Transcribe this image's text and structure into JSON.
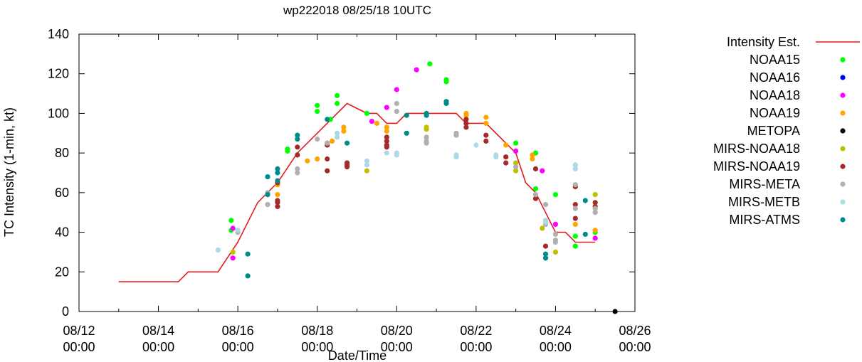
{
  "chart_data": {
    "type": "scatter",
    "title": "wp222018 08/25/18 10UTC",
    "xlabel": "Date/Time",
    "ylabel": "TC Intensity (1-min, kt)",
    "xlim": [
      "08/12 00:00",
      "08/26 00:00"
    ],
    "ylim": [
      0,
      140
    ],
    "x_tick_labels": [
      {
        "date": "08/12",
        "time": "00:00"
      },
      {
        "date": "08/14",
        "time": "00:00"
      },
      {
        "date": "08/16",
        "time": "00:00"
      },
      {
        "date": "08/18",
        "time": "00:00"
      },
      {
        "date": "08/20",
        "time": "00:00"
      },
      {
        "date": "08/22",
        "time": "00:00"
      },
      {
        "date": "08/24",
        "time": "00:00"
      },
      {
        "date": "08/26",
        "time": "00:00"
      }
    ],
    "y_ticks": [
      0,
      20,
      40,
      60,
      80,
      100,
      120,
      140
    ],
    "grid": false,
    "legend_position": "right",
    "line_series": {
      "name": "Intensity Est.",
      "color": "#e41a1c",
      "points": [
        [
          "08/13 00:00",
          15
        ],
        [
          "08/14 12:00",
          15
        ],
        [
          "08/14 18:00",
          20
        ],
        [
          "08/15 12:00",
          20
        ],
        [
          "08/16 00:00",
          35
        ],
        [
          "08/16 12:00",
          55
        ],
        [
          "08/17 00:00",
          65
        ],
        [
          "08/17 12:00",
          80
        ],
        [
          "08/18 00:00",
          90
        ],
        [
          "08/18 12:00",
          100
        ],
        [
          "08/18 18:00",
          105
        ],
        [
          "08/19 06:00",
          100
        ],
        [
          "08/19 12:00",
          100
        ],
        [
          "08/19 18:00",
          95
        ],
        [
          "08/20 00:00",
          95
        ],
        [
          "08/20 06:00",
          100
        ],
        [
          "08/21 12:00",
          100
        ],
        [
          "08/21 18:00",
          95
        ],
        [
          "08/22 06:00",
          95
        ],
        [
          "08/22 12:00",
          90
        ],
        [
          "08/23 00:00",
          80
        ],
        [
          "08/23 06:00",
          65
        ],
        [
          "08/23 12:00",
          60
        ],
        [
          "08/24 00:00",
          40
        ],
        [
          "08/24 06:00",
          40
        ],
        [
          "08/24 12:00",
          35
        ],
        [
          "08/25 00:00",
          35
        ]
      ]
    },
    "series": [
      {
        "name": "NOAA15",
        "color": "#00ff00",
        "points": [
          [
            "08/15 20:00",
            46
          ],
          [
            "08/15 20:00",
            41
          ],
          [
            "08/17 06:00",
            82
          ],
          [
            "08/17 06:00",
            81
          ],
          [
            "08/18 00:00",
            104
          ],
          [
            "08/18 00:00",
            101
          ],
          [
            "08/18 08:00",
            97
          ],
          [
            "08/18 12:00",
            109
          ],
          [
            "08/18 12:00",
            105
          ],
          [
            "08/19 06:00",
            100
          ],
          [
            "08/20 20:00",
            125
          ],
          [
            "08/21 06:00",
            117
          ],
          [
            "08/21 06:00",
            116
          ],
          [
            "08/23 00:00",
            85
          ],
          [
            "08/23 12:00",
            80
          ],
          [
            "08/23 12:00",
            62
          ],
          [
            "08/24 00:00",
            59
          ],
          [
            "08/24 12:00",
            38
          ],
          [
            "08/24 12:00",
            33
          ],
          [
            "08/25 00:00",
            40
          ]
        ]
      },
      {
        "name": "NOAA16",
        "color": "#0000ff",
        "points": []
      },
      {
        "name": "NOAA18",
        "color": "#ff00ff",
        "points": [
          [
            "08/15 21:00",
            42
          ],
          [
            "08/15 21:00",
            27
          ],
          [
            "08/19 09:00",
            96
          ],
          [
            "08/19 18:00",
            103
          ],
          [
            "08/20 00:00",
            112
          ],
          [
            "08/20 12:00",
            122
          ],
          [
            "08/23 00:00",
            81
          ],
          [
            "08/23 16:00",
            71
          ],
          [
            "08/24 00:00",
            44
          ],
          [
            "08/25 00:00",
            37
          ]
        ]
      },
      {
        "name": "NOAA19",
        "color": "#ffa500",
        "points": [
          [
            "08/17 00:00",
            59
          ],
          [
            "08/17 00:00",
            64
          ],
          [
            "08/17 18:00",
            76
          ],
          [
            "08/18 00:00",
            77
          ],
          [
            "08/18 09:00",
            86
          ],
          [
            "08/18 16:00",
            91
          ],
          [
            "08/18 16:00",
            93
          ],
          [
            "08/19 12:00",
            95
          ],
          [
            "08/19 18:00",
            91
          ],
          [
            "08/19 18:00",
            93
          ],
          [
            "08/21 18:00",
            99
          ],
          [
            "08/21 18:00",
            100
          ],
          [
            "08/22 06:00",
            98
          ],
          [
            "08/22 06:00",
            95
          ],
          [
            "08/22 18:00",
            84
          ],
          [
            "08/23 10:00",
            79
          ],
          [
            "08/23 10:00",
            77
          ],
          [
            "08/23 18:00",
            45
          ],
          [
            "08/24 12:00",
            44
          ],
          [
            "08/25 00:00",
            41
          ]
        ]
      },
      {
        "name": "METOPA",
        "color": "#000000",
        "points": [
          [
            "08/25 12:00",
            0
          ]
        ]
      },
      {
        "name": "MIRS-NOAA18",
        "color": "#c0c000",
        "points": [
          [
            "08/15 21:00",
            30
          ],
          [
            "08/18 18:00",
            75
          ],
          [
            "08/19 06:00",
            71
          ],
          [
            "08/20 18:00",
            93
          ],
          [
            "08/20 18:00",
            92
          ],
          [
            "08/23 00:00",
            75
          ],
          [
            "08/23 00:00",
            71
          ],
          [
            "08/23 16:00",
            42
          ],
          [
            "08/24 00:00",
            30
          ],
          [
            "08/25 00:00",
            59
          ]
        ]
      },
      {
        "name": "MIRS-NOAA19",
        "color": "#a52a2a",
        "points": [
          [
            "08/17 00:00",
            65
          ],
          [
            "08/17 00:00",
            56
          ],
          [
            "08/17 00:00",
            55
          ],
          [
            "08/17 00:00",
            53
          ],
          [
            "08/17 12:00",
            83
          ],
          [
            "08/17 12:00",
            79
          ],
          [
            "08/18 06:00",
            77
          ],
          [
            "08/18 06:00",
            71
          ],
          [
            "08/18 06:00",
            85
          ],
          [
            "08/18 06:00",
            84
          ],
          [
            "08/18 18:00",
            75
          ],
          [
            "08/18 18:00",
            74
          ],
          [
            "08/18 18:00",
            73
          ],
          [
            "08/19 18:00",
            88
          ],
          [
            "08/19 18:00",
            86
          ],
          [
            "08/19 18:00",
            84
          ],
          [
            "08/19 18:00",
            83
          ],
          [
            "08/21 18:00",
            97
          ],
          [
            "08/21 18:00",
            95
          ],
          [
            "08/21 18:00",
            93
          ],
          [
            "08/22 06:00",
            89
          ],
          [
            "08/22 06:00",
            86
          ],
          [
            "08/22 18:00",
            78
          ],
          [
            "08/22 18:00",
            75
          ],
          [
            "08/23 12:00",
            72
          ],
          [
            "08/23 12:00",
            57
          ],
          [
            "08/23 18:00",
            33
          ],
          [
            "08/23 18:00",
            27
          ],
          [
            "08/24 12:00",
            63
          ],
          [
            "08/24 12:00",
            54
          ],
          [
            "08/24 12:00",
            47
          ],
          [
            "08/25 00:00",
            55
          ],
          [
            "08/25 00:00",
            53
          ]
        ]
      },
      {
        "name": "MIRS-META",
        "color": "#b0b0b0",
        "points": [
          [
            "08/16 00:00",
            40
          ],
          [
            "08/16 18:00",
            54
          ],
          [
            "08/16 18:00",
            60
          ],
          [
            "08/16 18:00",
            59
          ],
          [
            "08/17 12:00",
            72
          ],
          [
            "08/17 12:00",
            70
          ],
          [
            "08/18 00:00",
            87
          ],
          [
            "08/18 06:00",
            85
          ],
          [
            "08/20 00:00",
            105
          ],
          [
            "08/20 00:00",
            101
          ],
          [
            "08/20 18:00",
            88
          ],
          [
            "08/20 18:00",
            86
          ],
          [
            "08/20 18:00",
            85
          ],
          [
            "08/21 12:00",
            90
          ],
          [
            "08/21 12:00",
            89
          ],
          [
            "08/23 00:00",
            73
          ],
          [
            "08/23 12:00",
            59
          ],
          [
            "08/23 18:00",
            54
          ],
          [
            "08/23 18:00",
            44
          ],
          [
            "08/24 00:00",
            39
          ],
          [
            "08/24 00:00",
            36
          ],
          [
            "08/24 00:00",
            35
          ],
          [
            "08/24 12:00",
            64
          ],
          [
            "08/24 12:00",
            52
          ],
          [
            "08/25 00:00",
            52
          ],
          [
            "08/25 00:00",
            50
          ]
        ]
      },
      {
        "name": "MIRS-METB",
        "color": "#add8e6",
        "points": [
          [
            "08/15 12:00",
            31
          ],
          [
            "08/16 00:00",
            41
          ],
          [
            "08/18 12:00",
            90
          ],
          [
            "08/18 12:00",
            88
          ],
          [
            "08/19 06:00",
            76
          ],
          [
            "08/19 06:00",
            74
          ],
          [
            "08/19 18:00",
            80
          ],
          [
            "08/20 00:00",
            80
          ],
          [
            "08/20 00:00",
            79
          ],
          [
            "08/21 12:00",
            79
          ],
          [
            "08/21 12:00",
            78
          ],
          [
            "08/22 00:00",
            84
          ],
          [
            "08/22 12:00",
            79
          ],
          [
            "08/22 12:00",
            78
          ],
          [
            "08/23 18:00",
            46
          ],
          [
            "08/23 18:00",
            45
          ],
          [
            "08/24 12:00",
            74
          ],
          [
            "08/24 12:00",
            72
          ]
        ]
      },
      {
        "name": "MIRS-ATMS",
        "color": "#008b8b",
        "points": [
          [
            "08/16 06:00",
            29
          ],
          [
            "08/16 06:00",
            18
          ],
          [
            "08/16 18:00",
            68
          ],
          [
            "08/16 18:00",
            59
          ],
          [
            "08/17 00:00",
            72
          ],
          [
            "08/17 00:00",
            70
          ],
          [
            "08/17 00:00",
            66
          ],
          [
            "08/17 12:00",
            89
          ],
          [
            "08/17 12:00",
            87
          ],
          [
            "08/18 06:00",
            97
          ],
          [
            "08/18 18:00",
            85
          ],
          [
            "08/20 06:00",
            99
          ],
          [
            "08/20 06:00",
            90
          ],
          [
            "08/20 18:00",
            100
          ],
          [
            "08/20 18:00",
            99
          ],
          [
            "08/21 06:00",
            106
          ],
          [
            "08/21 06:00",
            105
          ],
          [
            "08/23 18:00",
            29
          ],
          [
            "08/23 18:00",
            27
          ],
          [
            "08/24 18:00",
            56
          ],
          [
            "08/24 18:00",
            39
          ]
        ]
      }
    ]
  }
}
